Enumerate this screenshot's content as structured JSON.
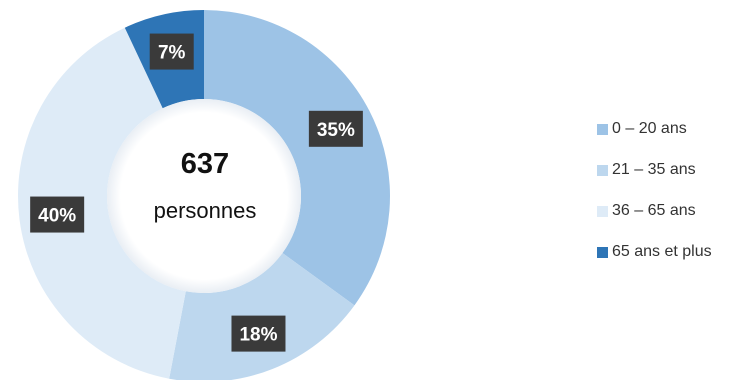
{
  "chart_data": {
    "type": "pie",
    "center_total": "637",
    "center_unit": "personnes",
    "slices": [
      {
        "name": "0 – 20 ans",
        "value": 35,
        "label": "35%",
        "color": "#9dc3e6"
      },
      {
        "name": "21 – 35 ans",
        "value": 18,
        "label": "18%",
        "color": "#bdd7ee"
      },
      {
        "name": "36 – 65 ans",
        "value": 40,
        "label": "40%",
        "color": "#deebf7"
      },
      {
        "name": "65 ans et plus",
        "value": 7,
        "label": "7%",
        "color": "#2e75b6"
      }
    ],
    "label_box_color": "#3a3a3a",
    "legend_position": "right"
  }
}
